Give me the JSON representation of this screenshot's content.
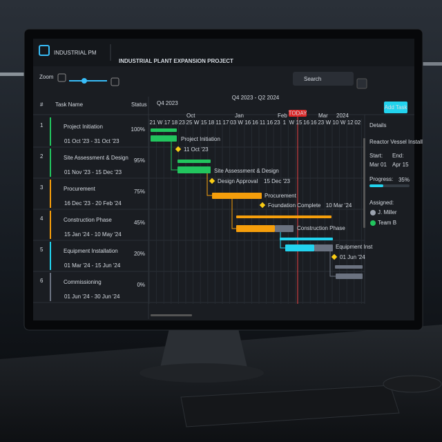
{
  "header": {
    "brand": "INDUSTRIAL PM",
    "title": "INDUSTRIAL PLANT EXPANSION PROJECT"
  },
  "toolbar": {
    "zoom": "Zoom",
    "search": "Search",
    "range": "Q4 2023 - Q2 2024",
    "add_task": "Add Task"
  },
  "table": {
    "columns": [
      "#",
      "Task Name",
      "Status"
    ],
    "rows": [
      [
        "1",
        "Project Initiation",
        "01 Oct '23 - 31 Oct '23",
        "100%"
      ],
      [
        "2",
        "Site Assessment & Design",
        "01 Nov '23 - 15 Dec '23",
        "95%"
      ],
      [
        "3",
        "Procurement",
        "16 Dec '23 - 20 Feb '24",
        "75%"
      ],
      [
        "4",
        "Construction Phase",
        "15 Jan '24 - 10 May '24",
        "45%"
      ],
      [
        "5",
        "Equipment Installation",
        "01 Mar '24 - 15 Jun '24",
        "20%"
      ],
      [
        "6",
        "Commissioning",
        "01 Jun '24 - 30 Jun '24",
        "0%"
      ]
    ]
  },
  "timeline": {
    "quarter": "Q4 2023",
    "months": [
      "Oct",
      "Jan",
      "Feb",
      "Mar",
      "2024"
    ],
    "today": "TODAY",
    "weeks": [
      "21",
      "W",
      "17",
      "18",
      "23",
      "25",
      "W",
      "15",
      "18",
      "11",
      "17",
      "03",
      "W",
      "16",
      "16",
      "11",
      "16",
      "23",
      "1",
      "W",
      "15",
      "16",
      "16",
      "23",
      "W",
      "10",
      "W",
      "12",
      "02"
    ]
  },
  "gantt": {
    "bar_labels": [
      "Project Initiation",
      "Site Assessment & Design",
      "Procurement",
      "Construction Phase",
      "Equipment Inst"
    ],
    "milestones": [
      {
        "name": "",
        "date": "11 Oct '23"
      },
      {
        "name": "Design Approval",
        "date": "15 Dec '23"
      },
      {
        "name": "Foundation Complete",
        "date": "10 Mar '24"
      },
      {
        "name": "",
        "date": "01 Jun '24"
      }
    ]
  },
  "details": {
    "heading": "Details",
    "task": "Reactor Vessel Install",
    "start_label": "Start:",
    "start": "Mar 01",
    "end_label": "End:",
    "end": "Apr 15",
    "progress_label": "Progress:",
    "progress": "35%",
    "assigned_label": "Assigned:",
    "assignees": [
      "J. Miller",
      "Team B"
    ]
  }
}
